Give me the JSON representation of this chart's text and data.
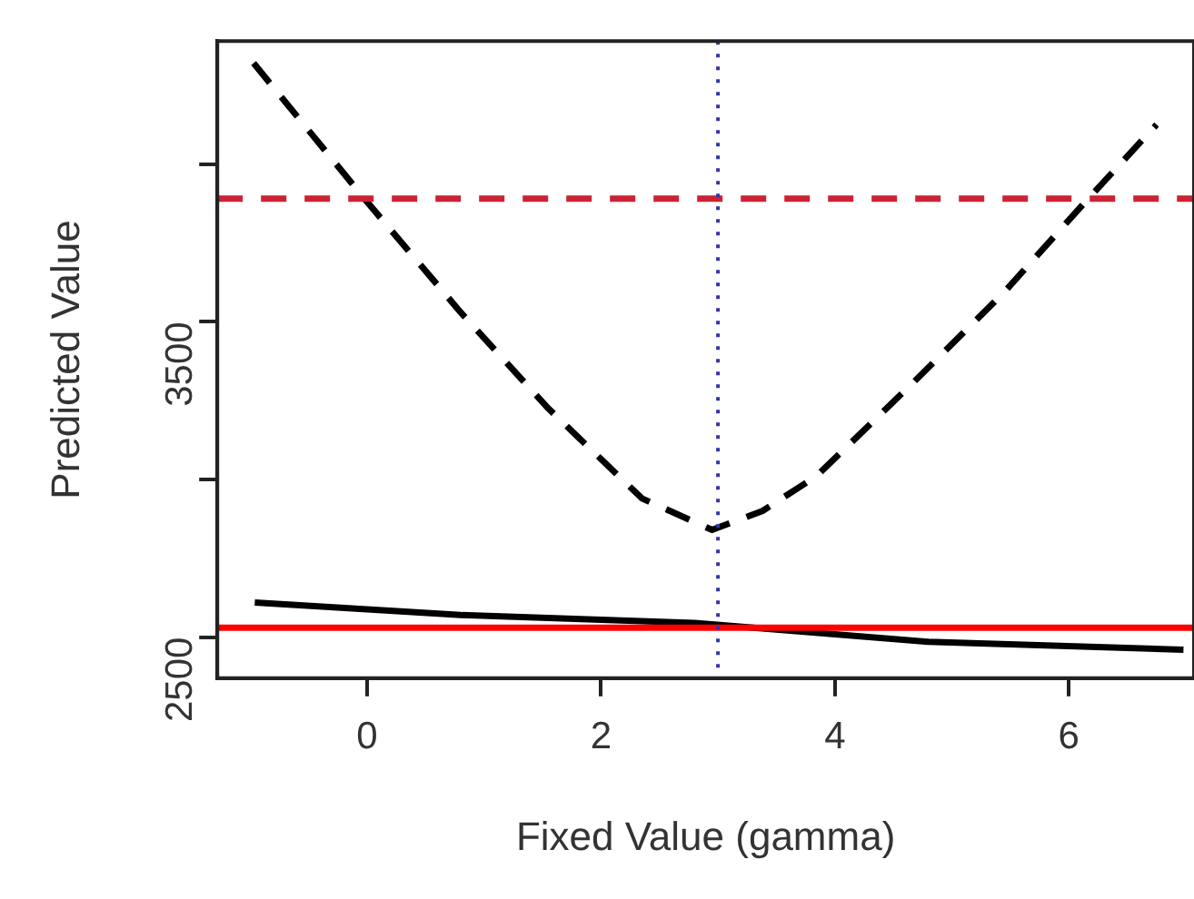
{
  "chart_data": {
    "type": "line",
    "xlabel": "Fixed Value (gamma)",
    "ylabel": "Predicted Value",
    "xlim": [
      -1.28,
      7.07
    ],
    "ylim": [
      2370,
      4390
    ],
    "xticks": [
      0,
      2,
      4,
      6
    ],
    "yticks": [
      2500,
      {
        "value": 3000,
        "label": null
      },
      3500,
      {
        "value": 4000,
        "label": null
      }
    ],
    "series": [
      {
        "line_style": "dashed",
        "color": "#000000",
        "x": [
          -0.97,
          0,
          0.8,
          1.55,
          2.35,
          2.95,
          3.38,
          3.84,
          4.65,
          5.45,
          6.14,
          6.75
        ],
        "values": [
          4320,
          3880,
          3530,
          3225,
          2940,
          2840,
          2900,
          3010,
          3300,
          3595,
          3880,
          4125
        ]
      },
      {
        "line_style": "solid",
        "color": "#000000",
        "x": [
          -0.96,
          0.8,
          2.8,
          4.8,
          6.98
        ],
        "values": [
          2610,
          2570,
          2545,
          2485,
          2460
        ]
      }
    ],
    "ref_lines": [
      {
        "axis": "y",
        "value": 3890,
        "color": "#cc2233",
        "line_style": "dashed"
      },
      {
        "axis": "y",
        "value": 2530,
        "color": "#ff0000",
        "line_style": "solid"
      },
      {
        "axis": "x",
        "value": 3,
        "color": "#3333aa",
        "line_style": "dotted"
      }
    ],
    "grid": false,
    "legend": false,
    "marker": "none"
  }
}
